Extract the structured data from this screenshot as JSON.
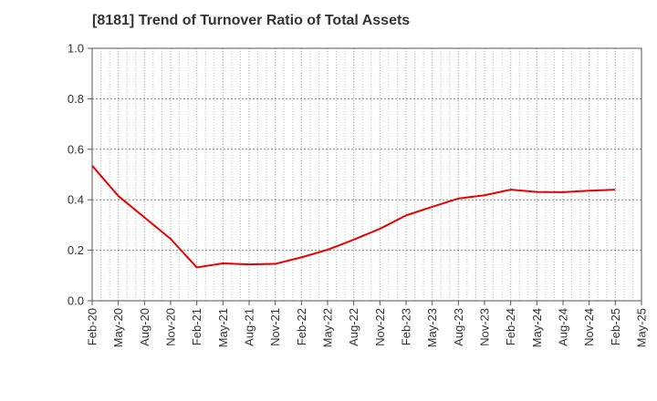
{
  "chart_data": {
    "type": "line",
    "title": "[8181]  Trend of Turnover Ratio of Total Assets",
    "xlabel": "",
    "ylabel": "",
    "x_ticks": [
      "Feb-20",
      "May-20",
      "Aug-20",
      "Nov-20",
      "Feb-21",
      "May-21",
      "Aug-21",
      "Nov-21",
      "Feb-22",
      "May-22",
      "Aug-22",
      "Nov-22",
      "Feb-23",
      "May-23",
      "Aug-23",
      "Nov-23",
      "Feb-24",
      "May-24",
      "Aug-24",
      "Nov-24",
      "Feb-25",
      "May-25"
    ],
    "y_ticks": [
      "0.0",
      "0.2",
      "0.4",
      "0.6",
      "0.8",
      "1.0"
    ],
    "ylim": [
      0,
      1.0
    ],
    "grid": true,
    "series": [
      {
        "color": "#e60000",
        "x": [
          "Feb-20",
          "May-20",
          "Aug-20",
          "Nov-20",
          "Feb-21",
          "May-21",
          "Aug-21",
          "Nov-21",
          "Feb-22",
          "May-22",
          "Aug-22",
          "Nov-22",
          "Feb-23",
          "May-23",
          "Aug-23",
          "Nov-23",
          "Feb-24",
          "May-24",
          "Aug-24",
          "Nov-24",
          "Feb-25"
        ],
        "values": [
          0.535,
          0.415,
          0.33,
          0.245,
          0.132,
          0.148,
          0.144,
          0.146,
          0.172,
          0.202,
          0.242,
          0.285,
          0.338,
          0.372,
          0.405,
          0.418,
          0.44,
          0.431,
          0.43,
          0.436,
          0.44
        ]
      }
    ]
  }
}
